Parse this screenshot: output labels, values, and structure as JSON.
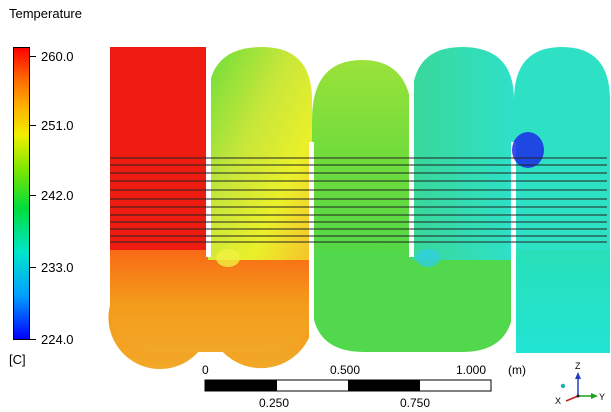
{
  "legend": {
    "title": "Temperature",
    "unit": "[C]",
    "ticks": [
      "260.0",
      "251.0",
      "242.0",
      "233.0",
      "224.0"
    ],
    "range": [
      224.0,
      260.0
    ],
    "colormap": [
      "#0000ff",
      "#00a0ff",
      "#00e6c8",
      "#00dc3c",
      "#7ce600",
      "#f0f000",
      "#ffb000",
      "#ff6400",
      "#ff0000"
    ]
  },
  "scale_bar": {
    "top_labels": [
      "0",
      "0.500",
      "1.000"
    ],
    "bottom_labels": [
      "0.250",
      "0.750"
    ],
    "unit": "(m)"
  },
  "triad": {
    "z": "Z",
    "x": "X",
    "y": "Y"
  },
  "colors": {
    "hot": "#ee1c10",
    "warm": "#f49a1a",
    "mid": "#c4e63a",
    "cool": "#2ede80",
    "cold": "#1c2ce8",
    "tube_lines": "#222222"
  }
}
